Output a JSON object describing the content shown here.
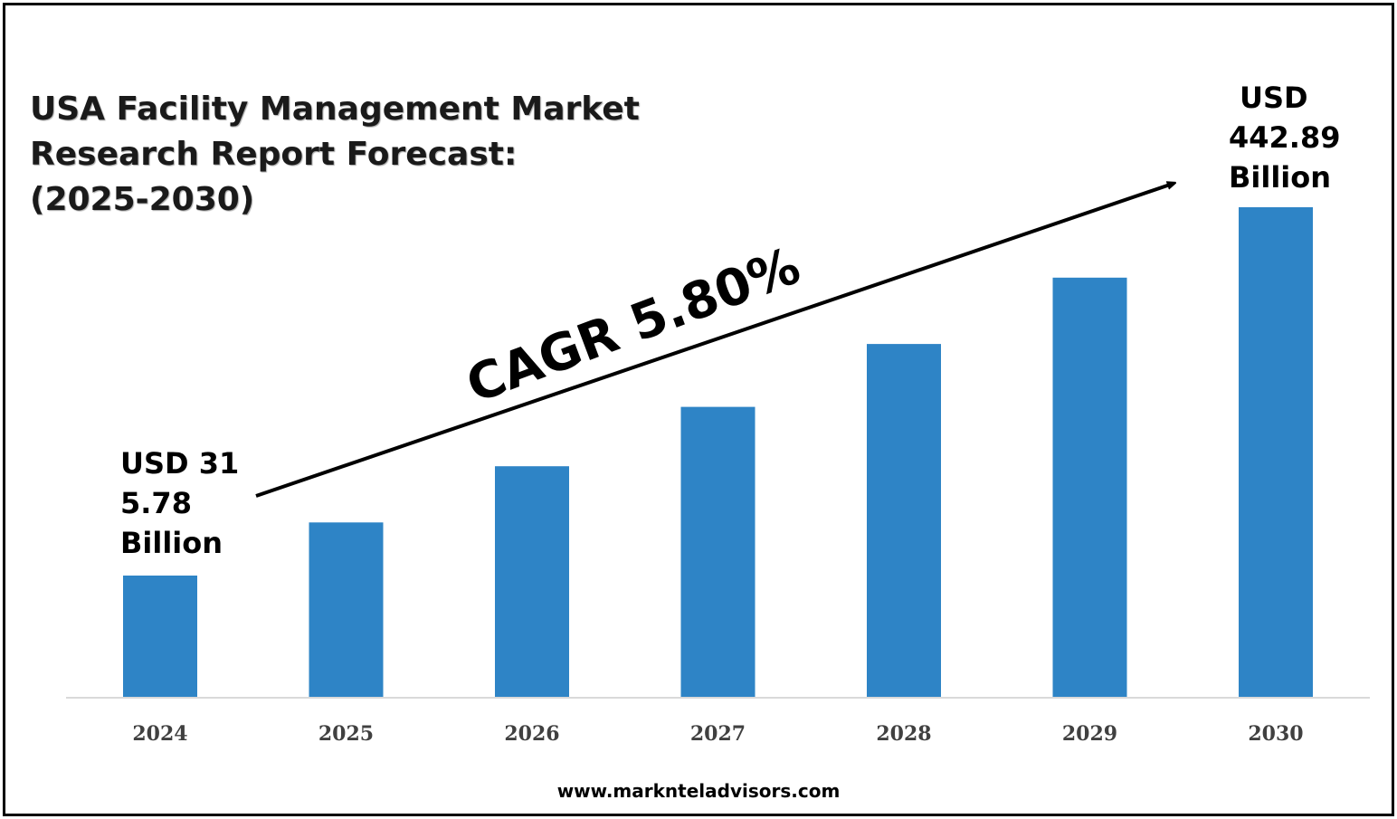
{
  "title_lines": [
    "USA Facility Management Market",
    "Research Report Forecast:",
    "(2025-2030)"
  ],
  "callouts": {
    "first": [
      "USD 31",
      "5.78",
      "Billion"
    ],
    "last": [
      "USD",
      "442.89",
      "Billion"
    ]
  },
  "cagr_label": "CAGR 5.80%",
  "footer_url": "www.marknteladvisors.com",
  "colors": {
    "bar": "#2e84c6",
    "axis": "#d9d9d9",
    "arrow": "#000000"
  },
  "chart_data": {
    "type": "bar",
    "categories": [
      "2024",
      "2025",
      "2026",
      "2027",
      "2028",
      "2029",
      "2030"
    ],
    "values": [
      315.78,
      334.1,
      353.5,
      374.0,
      395.7,
      418.6,
      442.89
    ],
    "value_unit": "USD Billion",
    "title": "USA Facility Management Market Research Report Forecast: (2025-2030)",
    "xlabel": "",
    "ylabel": "",
    "grid": false,
    "legend": "none",
    "annotations": [
      "CAGR 5.80%"
    ]
  }
}
